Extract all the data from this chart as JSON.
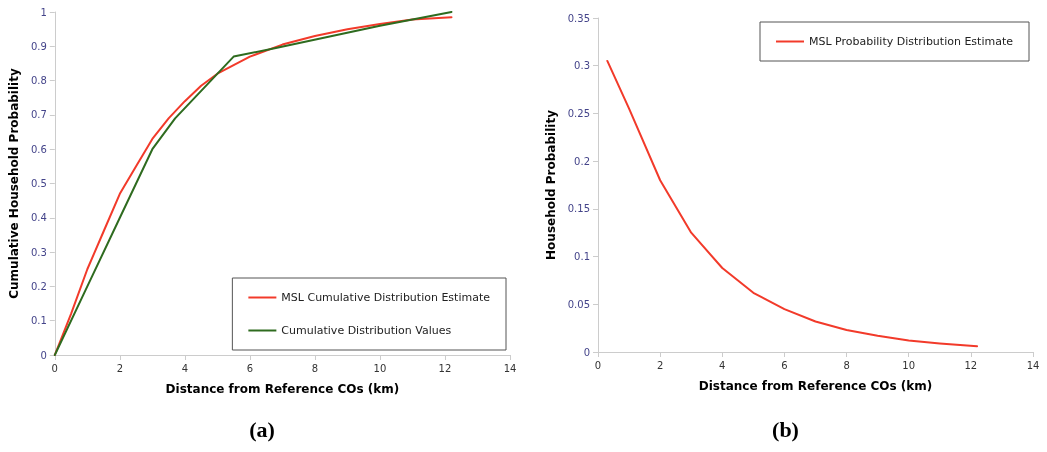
{
  "chart_data": [
    {
      "type": "line",
      "xlabel": "Distance from Reference COs (km)",
      "ylabel": "Cumulative Household Probability",
      "annotations": [
        "(a)"
      ],
      "xlim": [
        0,
        14
      ],
      "xticks": [
        0,
        2,
        4,
        6,
        8,
        10,
        12,
        14
      ],
      "ylim": [
        0,
        1
      ],
      "yticks": [
        0,
        0.1,
        0.2,
        0.3,
        0.4,
        0.5,
        0.6,
        0.7,
        0.8,
        0.9,
        1
      ],
      "grid": false,
      "legend": "bottom right",
      "marker": "none",
      "line_style": "solid",
      "series": [
        {
          "name": "MSL Cumulative Distribution Estimate",
          "color": "#f23a2a",
          "x": [
            0,
            0.5,
            1,
            1.5,
            2,
            2.5,
            3,
            3.5,
            4,
            4.5,
            5,
            5.5,
            6,
            7,
            8,
            9,
            10,
            11,
            12.2
          ],
          "values": [
            0,
            0.12,
            0.25,
            0.36,
            0.47,
            0.55,
            0.63,
            0.69,
            0.74,
            0.785,
            0.82,
            0.845,
            0.87,
            0.905,
            0.93,
            0.95,
            0.965,
            0.978,
            0.985
          ]
        },
        {
          "name": "Cumulative Distribution Values",
          "color": "#2e6b1f",
          "x": [
            0,
            1,
            2,
            3,
            3.7,
            5.5,
            6.8,
            10,
            12.2
          ],
          "values": [
            0,
            0.2,
            0.4,
            0.6,
            0.69,
            0.87,
            0.895,
            0.96,
            1.0
          ]
        }
      ]
    },
    {
      "type": "line",
      "xlabel": "Distance from Reference COs (km)",
      "ylabel": "Household Probability",
      "annotations": [
        "(b)"
      ],
      "xlim": [
        0,
        14
      ],
      "xticks": [
        0,
        2,
        4,
        6,
        8,
        10,
        12,
        14
      ],
      "ylim": [
        0,
        0.35
      ],
      "yticks": [
        0,
        0.05,
        0.1,
        0.15,
        0.2,
        0.25,
        0.3,
        0.35
      ],
      "grid": false,
      "legend": "top right",
      "marker": "none",
      "line_style": "solid",
      "series": [
        {
          "name": "MSL Probability Distribution Estimate",
          "color": "#f23a2a",
          "x": [
            0.3,
            1,
            2,
            3,
            4,
            5,
            6,
            7,
            8,
            9,
            10,
            11,
            12.2
          ],
          "values": [
            0.305,
            0.255,
            0.18,
            0.125,
            0.088,
            0.062,
            0.045,
            0.032,
            0.023,
            0.017,
            0.012,
            0.009,
            0.006
          ]
        }
      ]
    }
  ]
}
